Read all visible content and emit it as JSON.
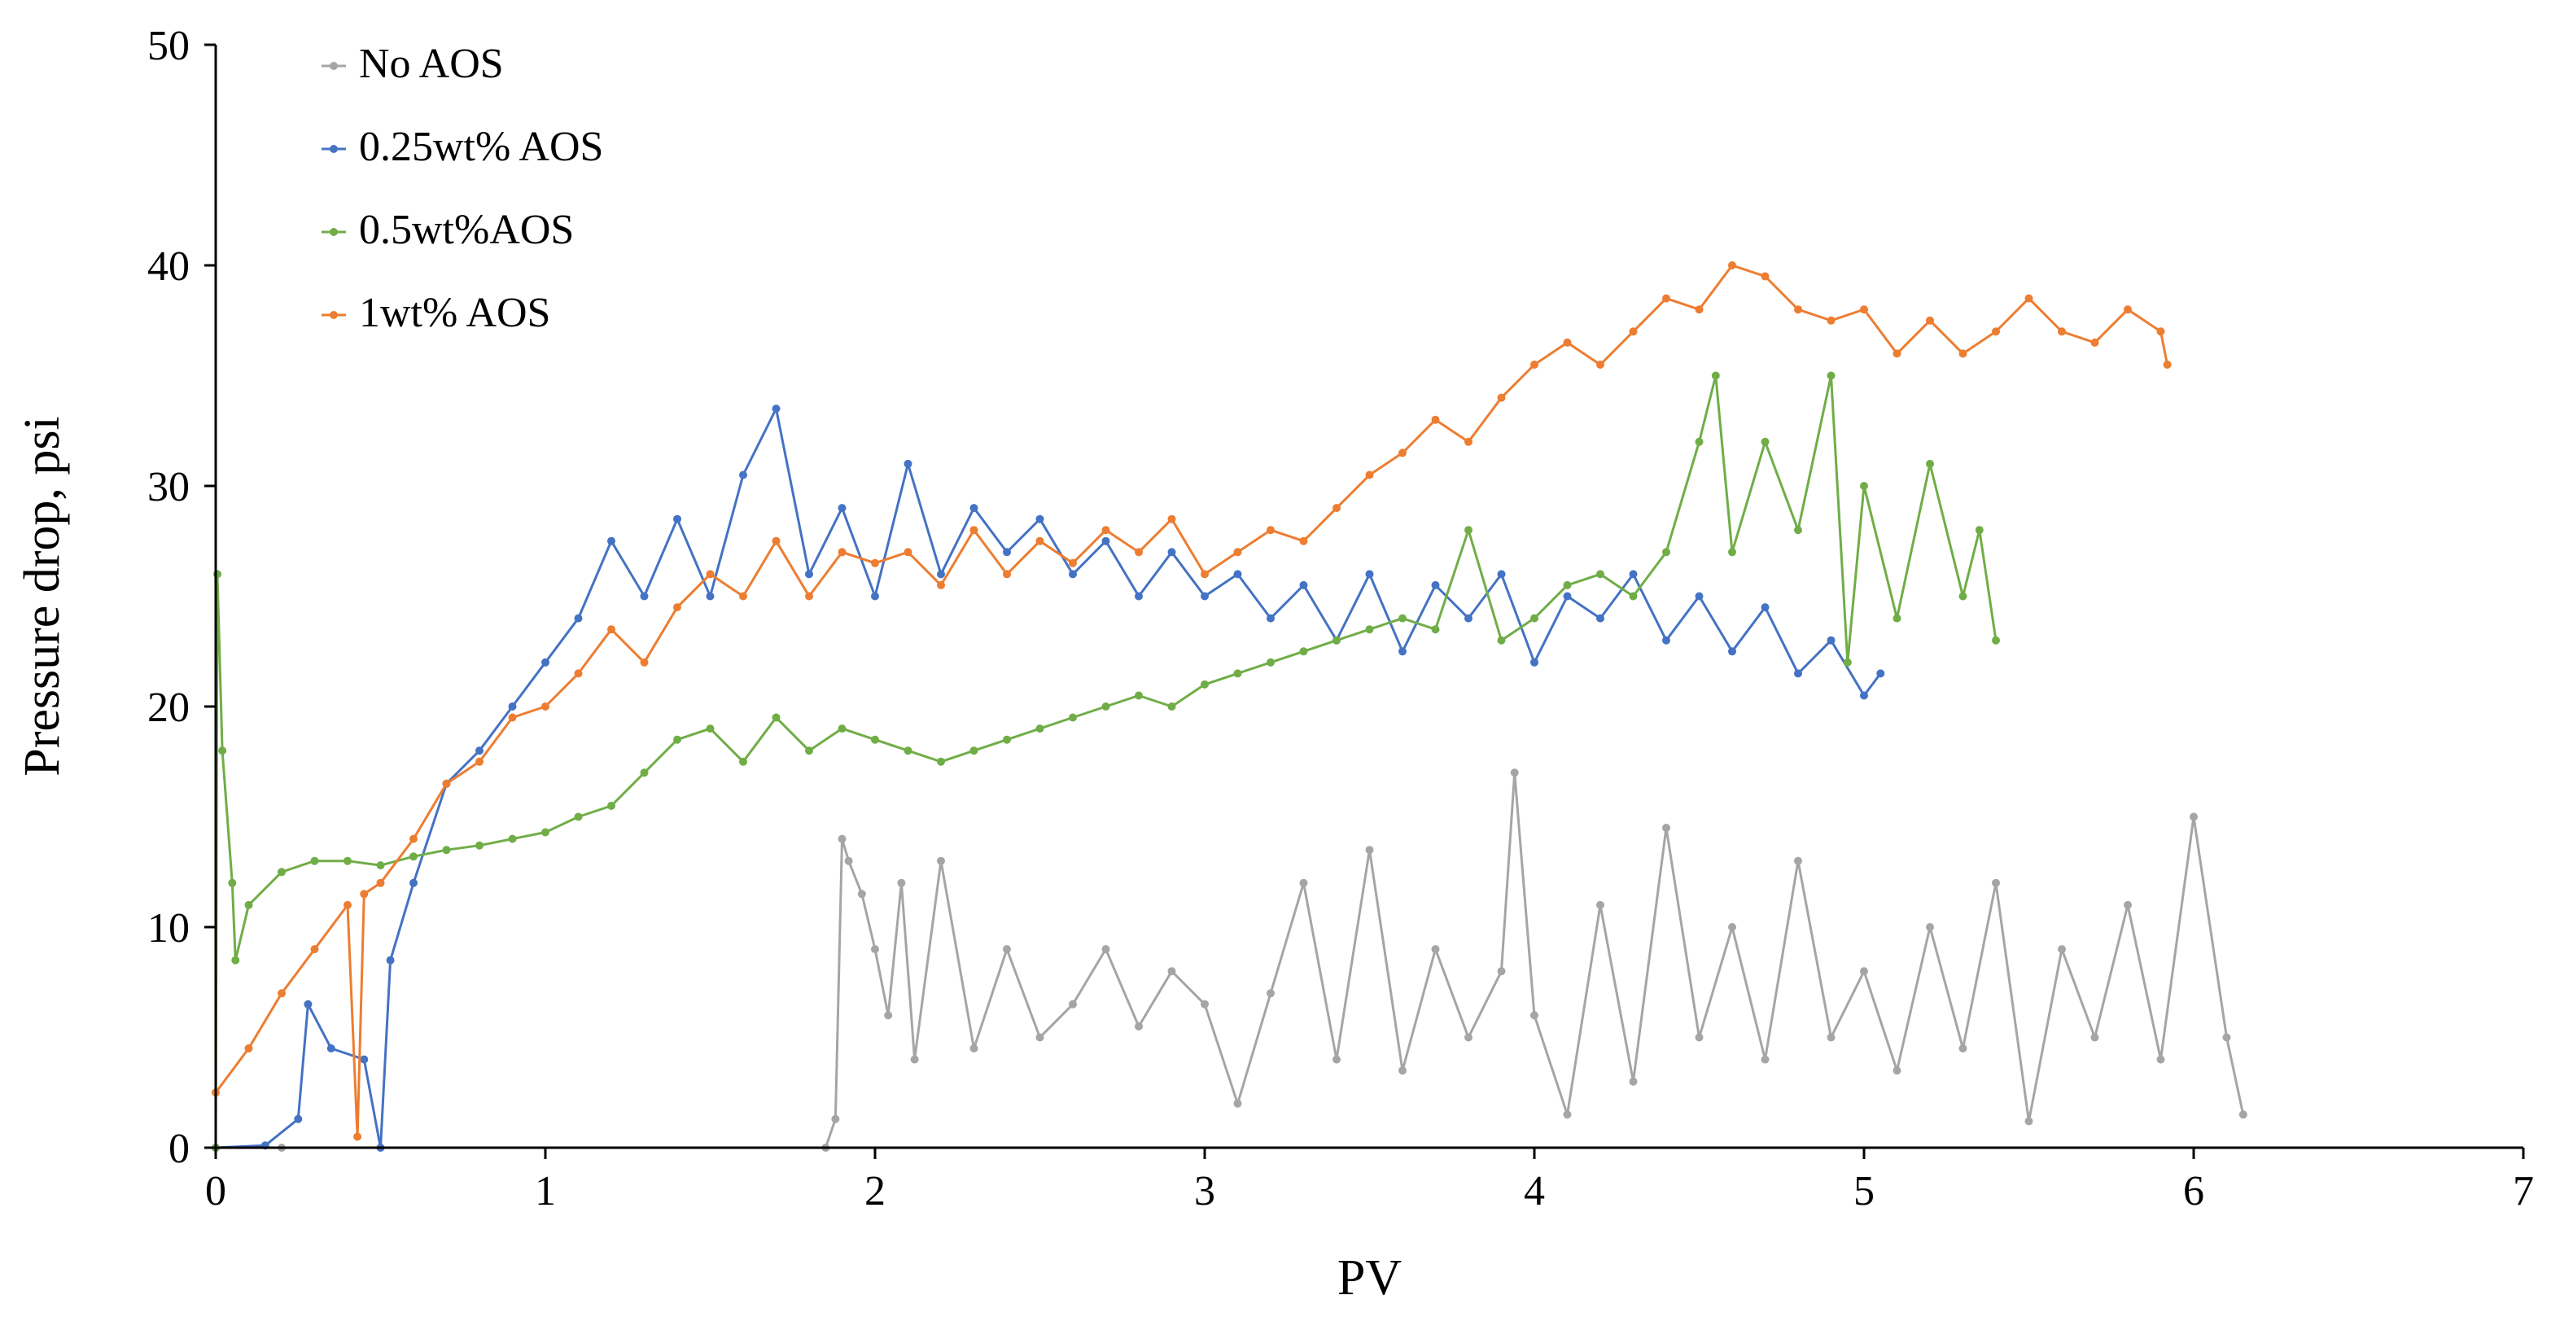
{
  "chart_data": {
    "type": "line",
    "xlabel": "PV",
    "ylabel": "Pressure drop, psi",
    "xlim": [
      0,
      7
    ],
    "ylim": [
      0,
      50
    ],
    "x_ticks": [
      "0",
      "1",
      "2",
      "3",
      "4",
      "5",
      "6",
      "7"
    ],
    "y_ticks": [
      "0",
      "10",
      "20",
      "30",
      "40",
      "50"
    ],
    "grid": false,
    "legend_position": "top-left",
    "series": [
      {
        "name": "No AOS",
        "color": "#a5a5a5",
        "points": [
          [
            0,
            0
          ],
          [
            0.2,
            0
          ],
          [
            1.85,
            0
          ],
          [
            1.88,
            1.3
          ],
          [
            1.9,
            14
          ],
          [
            1.92,
            13
          ],
          [
            1.96,
            11.5
          ],
          [
            2.0,
            9
          ],
          [
            2.04,
            6
          ],
          [
            2.08,
            12
          ],
          [
            2.12,
            4
          ],
          [
            2.2,
            13
          ],
          [
            2.3,
            4.5
          ],
          [
            2.4,
            9
          ],
          [
            2.5,
            5
          ],
          [
            2.6,
            6.5
          ],
          [
            2.7,
            9
          ],
          [
            2.8,
            5.5
          ],
          [
            2.9,
            8
          ],
          [
            3.0,
            6.5
          ],
          [
            3.1,
            2
          ],
          [
            3.2,
            7
          ],
          [
            3.3,
            12
          ],
          [
            3.4,
            4
          ],
          [
            3.5,
            13.5
          ],
          [
            3.6,
            3.5
          ],
          [
            3.7,
            9
          ],
          [
            3.8,
            5
          ],
          [
            3.9,
            8
          ],
          [
            3.94,
            17
          ],
          [
            4.0,
            6
          ],
          [
            4.1,
            1.5
          ],
          [
            4.2,
            11
          ],
          [
            4.3,
            3
          ],
          [
            4.4,
            14.5
          ],
          [
            4.5,
            5
          ],
          [
            4.6,
            10
          ],
          [
            4.7,
            4
          ],
          [
            4.8,
            13
          ],
          [
            4.9,
            5
          ],
          [
            5.0,
            8
          ],
          [
            5.1,
            3.5
          ],
          [
            5.2,
            10
          ],
          [
            5.3,
            4.5
          ],
          [
            5.4,
            12
          ],
          [
            5.5,
            1.2
          ],
          [
            5.6,
            9
          ],
          [
            5.7,
            5
          ],
          [
            5.8,
            11
          ],
          [
            5.9,
            4
          ],
          [
            6.0,
            15
          ],
          [
            6.1,
            5
          ],
          [
            6.15,
            1.5
          ]
        ]
      },
      {
        "name": "0.25wt% AOS",
        "color": "#4472c4",
        "points": [
          [
            0,
            0
          ],
          [
            0.15,
            0.1
          ],
          [
            0.25,
            1.3
          ],
          [
            0.28,
            6.5
          ],
          [
            0.35,
            4.5
          ],
          [
            0.45,
            4
          ],
          [
            0.5,
            0
          ],
          [
            0.53,
            8.5
          ],
          [
            0.6,
            12
          ],
          [
            0.7,
            16.5
          ],
          [
            0.8,
            18
          ],
          [
            0.9,
            20
          ],
          [
            1.0,
            22
          ],
          [
            1.1,
            24
          ],
          [
            1.2,
            27.5
          ],
          [
            1.3,
            25
          ],
          [
            1.4,
            28.5
          ],
          [
            1.5,
            25
          ],
          [
            1.6,
            30.5
          ],
          [
            1.7,
            33.5
          ],
          [
            1.8,
            26
          ],
          [
            1.9,
            29
          ],
          [
            2.0,
            25
          ],
          [
            2.1,
            31
          ],
          [
            2.2,
            26
          ],
          [
            2.3,
            29
          ],
          [
            2.4,
            27
          ],
          [
            2.5,
            28.5
          ],
          [
            2.6,
            26
          ],
          [
            2.7,
            27.5
          ],
          [
            2.8,
            25
          ],
          [
            2.9,
            27
          ],
          [
            3.0,
            25
          ],
          [
            3.1,
            26
          ],
          [
            3.2,
            24
          ],
          [
            3.3,
            25.5
          ],
          [
            3.4,
            23
          ],
          [
            3.5,
            26
          ],
          [
            3.6,
            22.5
          ],
          [
            3.7,
            25.5
          ],
          [
            3.8,
            24
          ],
          [
            3.9,
            26
          ],
          [
            4.0,
            22
          ],
          [
            4.1,
            25
          ],
          [
            4.2,
            24
          ],
          [
            4.3,
            26
          ],
          [
            4.4,
            23
          ],
          [
            4.5,
            25
          ],
          [
            4.6,
            22.5
          ],
          [
            4.7,
            24.5
          ],
          [
            4.8,
            21.5
          ],
          [
            4.9,
            23
          ],
          [
            5.0,
            20.5
          ],
          [
            5.05,
            21.5
          ]
        ]
      },
      {
        "name": "0.5wt%AOS",
        "color": "#70ad47",
        "points": [
          [
            0,
            0
          ],
          [
            0.005,
            26
          ],
          [
            0.02,
            18
          ],
          [
            0.05,
            12
          ],
          [
            0.06,
            8.5
          ],
          [
            0.1,
            11
          ],
          [
            0.2,
            12.5
          ],
          [
            0.3,
            13
          ],
          [
            0.4,
            13
          ],
          [
            0.5,
            12.8
          ],
          [
            0.6,
            13.2
          ],
          [
            0.7,
            13.5
          ],
          [
            0.8,
            13.7
          ],
          [
            0.9,
            14
          ],
          [
            1.0,
            14.3
          ],
          [
            1.1,
            15
          ],
          [
            1.2,
            15.5
          ],
          [
            1.3,
            17
          ],
          [
            1.4,
            18.5
          ],
          [
            1.5,
            19
          ],
          [
            1.6,
            17.5
          ],
          [
            1.7,
            19.5
          ],
          [
            1.8,
            18
          ],
          [
            1.9,
            19
          ],
          [
            2.0,
            18.5
          ],
          [
            2.1,
            18
          ],
          [
            2.2,
            17.5
          ],
          [
            2.3,
            18
          ],
          [
            2.4,
            18.5
          ],
          [
            2.5,
            19
          ],
          [
            2.6,
            19.5
          ],
          [
            2.7,
            20
          ],
          [
            2.8,
            20.5
          ],
          [
            2.9,
            20
          ],
          [
            3.0,
            21
          ],
          [
            3.1,
            21.5
          ],
          [
            3.2,
            22
          ],
          [
            3.3,
            22.5
          ],
          [
            3.4,
            23
          ],
          [
            3.5,
            23.5
          ],
          [
            3.6,
            24
          ],
          [
            3.7,
            23.5
          ],
          [
            3.8,
            28
          ],
          [
            3.9,
            23
          ],
          [
            4.0,
            24
          ],
          [
            4.1,
            25.5
          ],
          [
            4.2,
            26
          ],
          [
            4.3,
            25
          ],
          [
            4.4,
            27
          ],
          [
            4.5,
            32
          ],
          [
            4.55,
            35
          ],
          [
            4.6,
            27
          ],
          [
            4.7,
            32
          ],
          [
            4.8,
            28
          ],
          [
            4.9,
            35
          ],
          [
            4.95,
            22
          ],
          [
            5.0,
            30
          ],
          [
            5.1,
            24
          ],
          [
            5.2,
            31
          ],
          [
            5.3,
            25
          ],
          [
            5.35,
            28
          ],
          [
            5.4,
            23
          ]
        ]
      },
      {
        "name": "1wt% AOS",
        "color": "#ed7d31",
        "points": [
          [
            0,
            2.5
          ],
          [
            0.1,
            4.5
          ],
          [
            0.2,
            7
          ],
          [
            0.3,
            9
          ],
          [
            0.4,
            11
          ],
          [
            0.43,
            0.5
          ],
          [
            0.45,
            11.5
          ],
          [
            0.5,
            12
          ],
          [
            0.6,
            14
          ],
          [
            0.7,
            16.5
          ],
          [
            0.8,
            17.5
          ],
          [
            0.9,
            19.5
          ],
          [
            1.0,
            20
          ],
          [
            1.1,
            21.5
          ],
          [
            1.2,
            23.5
          ],
          [
            1.3,
            22
          ],
          [
            1.4,
            24.5
          ],
          [
            1.5,
            26
          ],
          [
            1.6,
            25
          ],
          [
            1.7,
            27.5
          ],
          [
            1.8,
            25
          ],
          [
            1.9,
            27
          ],
          [
            2.0,
            26.5
          ],
          [
            2.1,
            27
          ],
          [
            2.2,
            25.5
          ],
          [
            2.3,
            28
          ],
          [
            2.4,
            26
          ],
          [
            2.5,
            27.5
          ],
          [
            2.6,
            26.5
          ],
          [
            2.7,
            28
          ],
          [
            2.8,
            27
          ],
          [
            2.9,
            28.5
          ],
          [
            3.0,
            26
          ],
          [
            3.1,
            27
          ],
          [
            3.2,
            28
          ],
          [
            3.3,
            27.5
          ],
          [
            3.4,
            29
          ],
          [
            3.5,
            30.5
          ],
          [
            3.6,
            31.5
          ],
          [
            3.7,
            33
          ],
          [
            3.8,
            32
          ],
          [
            3.9,
            34
          ],
          [
            4.0,
            35.5
          ],
          [
            4.1,
            36.5
          ],
          [
            4.2,
            35.5
          ],
          [
            4.3,
            37
          ],
          [
            4.4,
            38.5
          ],
          [
            4.5,
            38
          ],
          [
            4.6,
            40
          ],
          [
            4.7,
            39.5
          ],
          [
            4.8,
            38
          ],
          [
            4.9,
            37.5
          ],
          [
            5.0,
            38
          ],
          [
            5.1,
            36
          ],
          [
            5.2,
            37.5
          ],
          [
            5.3,
            36
          ],
          [
            5.4,
            37
          ],
          [
            5.5,
            38.5
          ],
          [
            5.6,
            37
          ],
          [
            5.7,
            36.5
          ],
          [
            5.8,
            38
          ],
          [
            5.9,
            37
          ],
          [
            5.92,
            35.5
          ]
        ]
      }
    ]
  }
}
